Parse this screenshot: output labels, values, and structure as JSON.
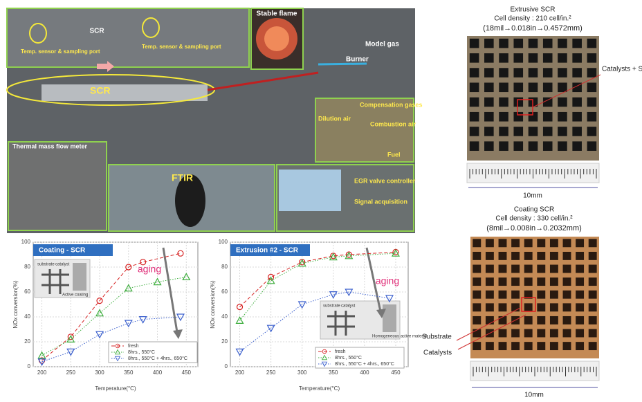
{
  "chart_data": [
    {
      "type": "line",
      "title": "Coating - SCR",
      "xlabel": "Temperature(°C)",
      "ylabel": "NOx conversion(%)",
      "xlim": [
        185,
        470
      ],
      "ylim": [
        0,
        100
      ],
      "xticks": [
        200,
        250,
        300,
        350,
        400,
        450
      ],
      "yticks": [
        0,
        20,
        40,
        60,
        80,
        100
      ],
      "grid": true,
      "annotations": {
        "aging": "aging",
        "inset_labels": [
          "substrate",
          "catalyst",
          "Active coating"
        ]
      },
      "series": [
        {
          "name": "fresh",
          "color": "#d62020",
          "marker": "circle",
          "line": "dashed",
          "x": [
            200,
            250,
            300,
            350,
            375,
            440
          ],
          "values": [
            5,
            24,
            53,
            80,
            84,
            91
          ]
        },
        {
          "name": "8hrs., 550°C",
          "color": "#3fae3f",
          "marker": "triangle-up",
          "line": "dotted",
          "x": [
            200,
            250,
            300,
            350,
            400,
            450
          ],
          "values": [
            9,
            22,
            43,
            63,
            68,
            72
          ]
        },
        {
          "name": "8hrs., 550°C + 4hrs., 650°C",
          "color": "#3a5fcd",
          "marker": "triangle-down",
          "line": "dotted",
          "x": [
            200,
            250,
            300,
            350,
            375,
            440
          ],
          "values": [
            4,
            12,
            26,
            35,
            38,
            40
          ]
        }
      ]
    },
    {
      "type": "line",
      "title": "Extrusion #2 - SCR",
      "xlabel": "Temperature(°C)",
      "ylabel": "NOx conversion(%)",
      "xlim": [
        185,
        470
      ],
      "ylim": [
        0,
        100
      ],
      "xticks": [
        200,
        250,
        300,
        350,
        400,
        450
      ],
      "yticks": [
        0,
        20,
        40,
        60,
        80,
        100
      ],
      "grid": true,
      "annotations": {
        "aging": "aging",
        "inset_labels": [
          "substrate",
          "catalyst",
          "Homogeneous active material"
        ]
      },
      "series": [
        {
          "name": "fresh",
          "color": "#d62020",
          "marker": "circle",
          "line": "dashed",
          "x": [
            200,
            250,
            300,
            350,
            375,
            450
          ],
          "values": [
            48,
            72,
            84,
            89,
            90,
            92
          ]
        },
        {
          "name": "8hrs., 550°C",
          "color": "#3fae3f",
          "marker": "triangle-up",
          "line": "dotted",
          "x": [
            200,
            250,
            300,
            350,
            375,
            450
          ],
          "values": [
            37,
            69,
            83,
            88,
            89,
            91
          ]
        },
        {
          "name": "8hrs., 550°C + 4hrs., 650°C",
          "color": "#3a5fcd",
          "marker": "triangle-down",
          "line": "dotted",
          "x": [
            200,
            250,
            300,
            350,
            375,
            440
          ],
          "values": [
            12,
            31,
            50,
            58,
            60,
            55
          ]
        }
      ]
    }
  ],
  "photos": {
    "labels": [
      "SCR",
      "Temp. sensor & sampling port",
      "Temp. sensor & sampling port",
      "Stable flame",
      "Model gas",
      "Burner",
      "SCR",
      "Compensation gases",
      "Dilution air",
      "Combustion air",
      "Fuel",
      "Thermal mass flow meter",
      "FTIR",
      "EGR valve controller",
      "Signal acquisition"
    ]
  },
  "scr_samples": [
    {
      "title": "Extrusive SCR",
      "cell_density": "Cell density : 210 cell/in.²",
      "wall": "(18mil→0.018in→0.4572mm)",
      "callouts": [
        "Catalysts + Substrate"
      ],
      "scale": "10mm"
    },
    {
      "title": "Coating SCR",
      "cell_density": "Cell density : 330 cell/in.²",
      "wall": "(8mil→0.008in→0.2032mm)",
      "callouts": [
        "Substrate",
        "Catalysts"
      ],
      "scale": "10mm"
    }
  ]
}
